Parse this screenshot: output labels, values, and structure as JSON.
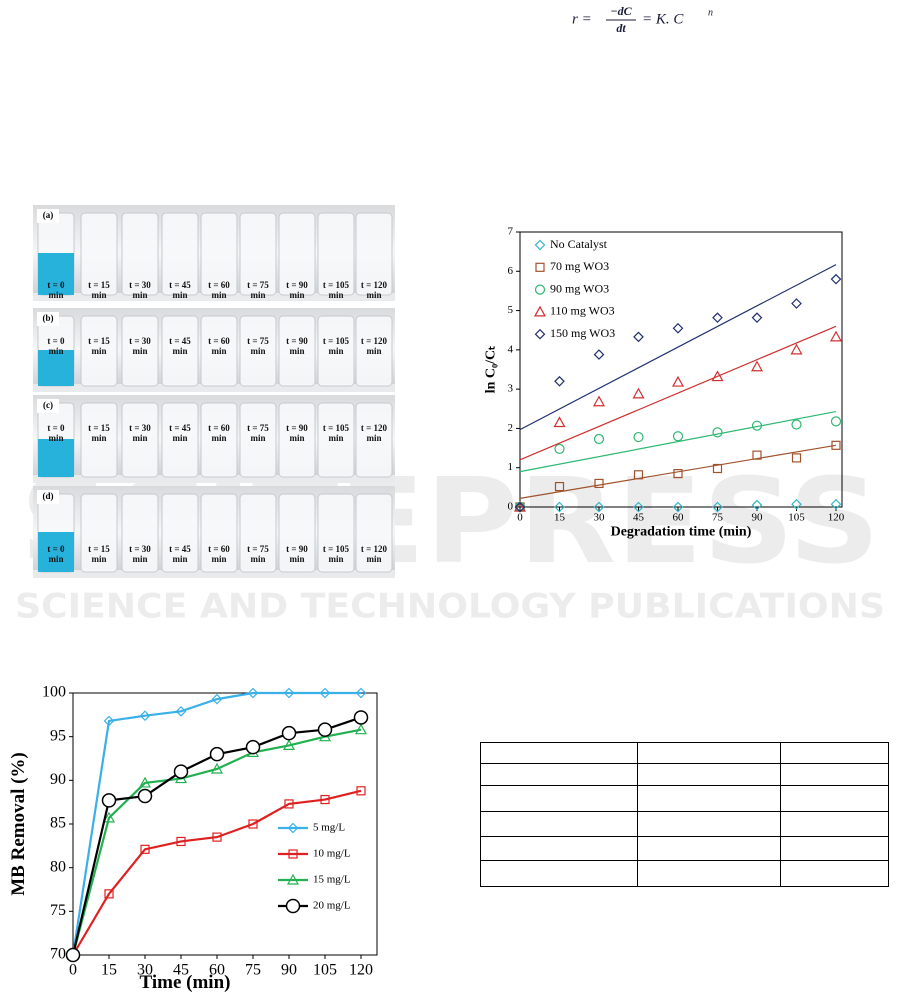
{
  "formula": {
    "lhs": "r =",
    "num": "−dC",
    "den": "dt",
    "rhs": "= K. C",
    "exp": "n"
  },
  "watermark": {
    "brand": "SCITEPRESS",
    "tagline": "SCIENCE AND TECHNOLOGY PUBLICATIONS"
  },
  "photo": {
    "panels": [
      "(a)",
      "(b)",
      "(c)",
      "(d)"
    ],
    "times": [
      "t = 0\nmin",
      "t = 15\nmin",
      "t = 30\nmin",
      "t = 45\nmin",
      "t = 60\nmin",
      "t = 75\nmin",
      "t = 90\nmin",
      "t = 105\nmin",
      "t = 120\nmin"
    ]
  },
  "chart_data": [
    {
      "type": "scatter",
      "xlabel": "Degradation time (min)",
      "ylabel": "ln C₀/Cₜ",
      "x": [
        0,
        15,
        30,
        45,
        60,
        75,
        90,
        105,
        120
      ],
      "xlim": [
        0,
        120
      ],
      "xticks": [
        0,
        15,
        30,
        45,
        60,
        75,
        90,
        105,
        120
      ],
      "ylim": [
        0,
        7
      ],
      "yticks": [
        0,
        1,
        2,
        3,
        4,
        5,
        6,
        7
      ],
      "legend": "upper left",
      "series": [
        {
          "name": "No Catalyst",
          "color": "#33b5c9",
          "marker": "diamond",
          "values": [
            0,
            0,
            0,
            0,
            0,
            0,
            0.05,
            0.07,
            0.07
          ]
        },
        {
          "name": "70 mg WO3",
          "color": "#a0522d",
          "marker": "square",
          "values": [
            0,
            0.52,
            0.6,
            0.82,
            0.85,
            0.98,
            1.32,
            1.25,
            1.57
          ],
          "trendline": [
            0.22,
            1.57
          ]
        },
        {
          "name": "90 mg WO3",
          "color": "#2eb872",
          "marker": "circle",
          "values": [
            0,
            1.48,
            1.73,
            1.78,
            1.8,
            1.9,
            2.07,
            2.1,
            2.18
          ],
          "trendline": [
            0.9,
            2.43
          ]
        },
        {
          "name": "110 mg WO3",
          "color": "#d03030",
          "marker": "triangle",
          "values": [
            0,
            2.15,
            2.68,
            2.88,
            3.18,
            3.32,
            3.57,
            4.0,
            4.33
          ],
          "trendline": [
            1.2,
            4.6
          ]
        },
        {
          "name": "150 mg WO3",
          "color": "#203070",
          "marker": "diamond",
          "values": [
            0,
            3.2,
            3.88,
            4.33,
            4.55,
            4.82,
            4.82,
            5.18,
            5.8
          ],
          "trendline": [
            1.97,
            6.17
          ]
        }
      ]
    },
    {
      "type": "line",
      "xlabel": "Time (min)",
      "ylabel": "MB Removal (%)",
      "x": [
        0,
        15,
        30,
        45,
        60,
        75,
        90,
        105,
        120
      ],
      "xlim": [
        0,
        120
      ],
      "xticks": [
        0,
        15,
        30,
        45,
        60,
        75,
        90,
        105,
        120
      ],
      "ylim": [
        70,
        100
      ],
      "yticks": [
        70,
        75,
        80,
        85,
        90,
        95,
        100
      ],
      "legend": "lower right",
      "series": [
        {
          "name": "5 mg/L",
          "color": "#3ab0e8",
          "marker": "diamond",
          "values": [
            70,
            96.8,
            97.4,
            97.9,
            99.3,
            100,
            100,
            100,
            100
          ]
        },
        {
          "name": "10 mg/L",
          "color": "#e02020",
          "marker": "square",
          "values": [
            70,
            77,
            82.1,
            83,
            83.5,
            85,
            87.3,
            87.8,
            88.8
          ]
        },
        {
          "name": "15 mg/L",
          "color": "#22b050",
          "marker": "triangle",
          "values": [
            70,
            85.7,
            89.7,
            90.2,
            91.3,
            93.2,
            94,
            95,
            95.8
          ]
        },
        {
          "name": "20 mg/L",
          "color": "#000000",
          "marker": "bigcircle",
          "values": [
            70,
            87.7,
            88.2,
            91,
            93,
            93.8,
            95.4,
            95.8,
            97.2
          ]
        }
      ]
    }
  ]
}
